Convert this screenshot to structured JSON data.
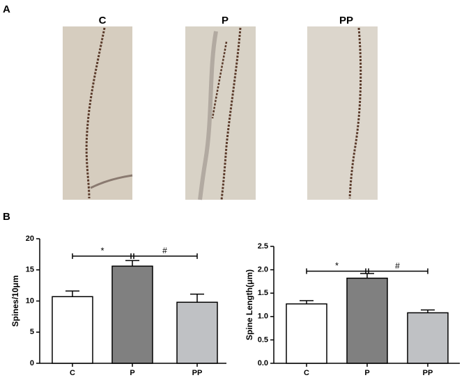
{
  "panels": {
    "a": {
      "label": "A",
      "images": [
        {
          "label": "C"
        },
        {
          "label": "P"
        },
        {
          "label": "PP"
        }
      ]
    },
    "b": {
      "label": "B"
    }
  },
  "chart_data": [
    {
      "type": "bar",
      "y_label": "Spines/10μm",
      "categories": [
        "C",
        "P",
        "PP"
      ],
      "values": [
        10.7,
        15.6,
        9.8
      ],
      "errors": [
        0.9,
        0.9,
        1.3
      ],
      "colors": [
        "#ffffff",
        "#808080",
        "#bfc1c4"
      ],
      "ylim": [
        0,
        20
      ],
      "yticks": [
        0,
        5,
        10,
        15,
        20
      ],
      "annotations": [
        "*",
        "#"
      ]
    },
    {
      "type": "bar",
      "y_label": "Spine Length(μm)",
      "categories": [
        "C",
        "P",
        "PP"
      ],
      "values": [
        1.27,
        1.82,
        1.08
      ],
      "errors": [
        0.07,
        0.1,
        0.06
      ],
      "colors": [
        "#ffffff",
        "#808080",
        "#bfc1c4"
      ],
      "ylim": [
        0,
        2.5
      ],
      "yticks": [
        {
          "value": 0,
          "label": "0.0"
        },
        0.5,
        {
          "value": 1,
          "label": "1.0"
        },
        1.5,
        {
          "value": 2,
          "label": "2.0"
        },
        2.5
      ],
      "annotations": [
        "*",
        "#"
      ]
    }
  ]
}
